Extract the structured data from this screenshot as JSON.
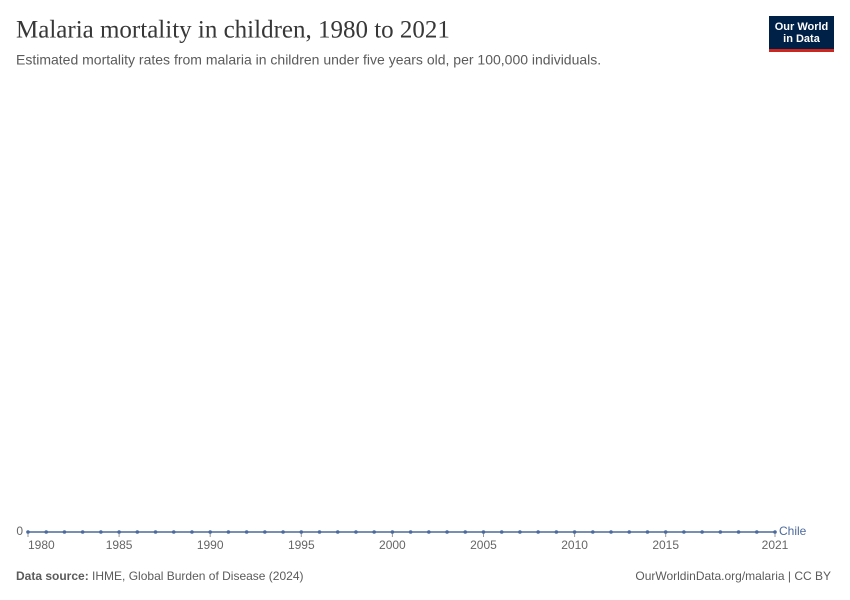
{
  "chart_data": {
    "type": "line",
    "title": "Malaria mortality in children, 1980 to 2021",
    "subtitle": "Estimated mortality rates from malaria in children under five years old, per 100,000 individuals.",
    "x": [
      1980,
      1981,
      1982,
      1983,
      1984,
      1985,
      1986,
      1987,
      1988,
      1989,
      1990,
      1991,
      1992,
      1993,
      1994,
      1995,
      1996,
      1997,
      1998,
      1999,
      2000,
      2001,
      2002,
      2003,
      2004,
      2005,
      2006,
      2007,
      2008,
      2009,
      2010,
      2011,
      2012,
      2013,
      2014,
      2015,
      2016,
      2017,
      2018,
      2019,
      2020,
      2021
    ],
    "series": [
      {
        "name": "Chile",
        "color": "#4c6a9c",
        "values": [
          0,
          0,
          0,
          0,
          0,
          0,
          0,
          0,
          0,
          0,
          0,
          0,
          0,
          0,
          0,
          0,
          0,
          0,
          0,
          0,
          0,
          0,
          0,
          0,
          0,
          0,
          0,
          0,
          0,
          0,
          0,
          0,
          0,
          0,
          0,
          0,
          0,
          0,
          0,
          0,
          0,
          0
        ]
      }
    ],
    "xlim": [
      1980,
      2021
    ],
    "xticks": [
      1980,
      1985,
      1990,
      1995,
      2000,
      2005,
      2010,
      2015,
      2021
    ],
    "ylim": [
      0,
      1
    ],
    "yticks": [
      0
    ],
    "source_label": "Data source:",
    "source": "IHME, Global Burden of Disease (2024)",
    "credit": "OurWorldinData.org/malaria | CC BY",
    "logo": [
      "Our World",
      "in Data"
    ]
  }
}
